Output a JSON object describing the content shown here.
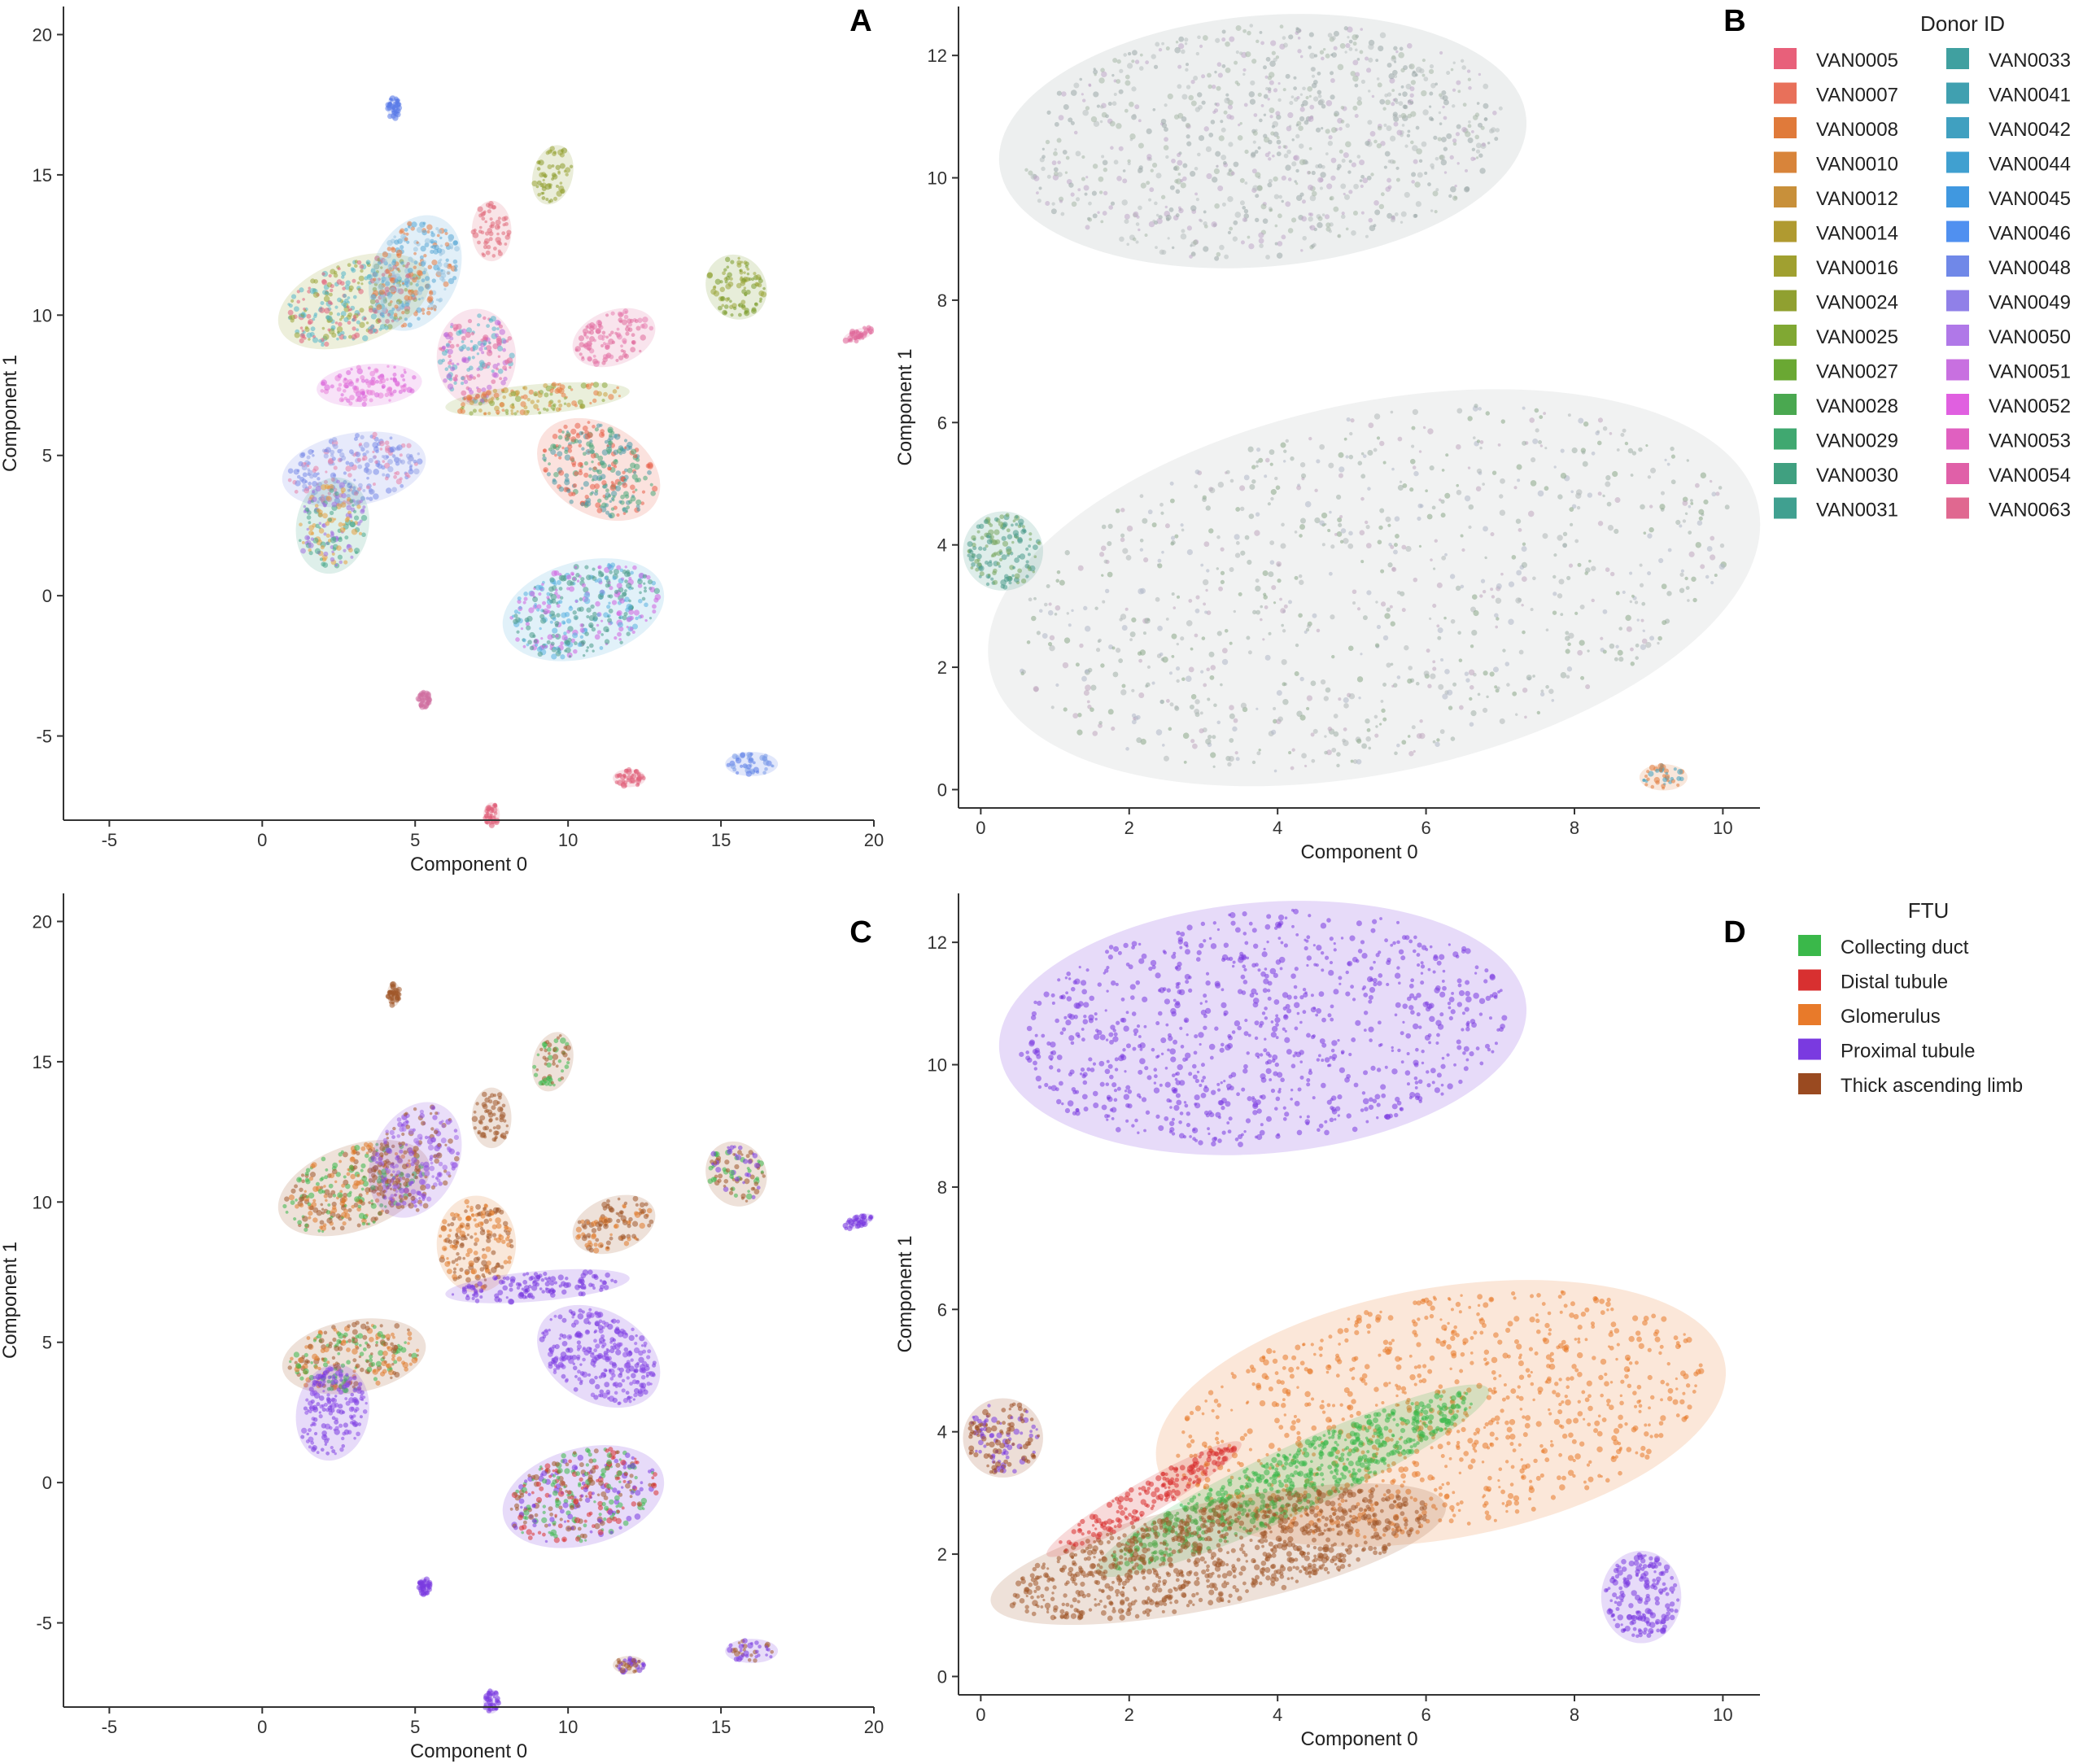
{
  "chart_data": [
    {
      "panel": "A",
      "type": "scatter",
      "xlabel": "Component 0",
      "ylabel": "Component 1",
      "xlim": [
        -6.5,
        20
      ],
      "ylim": [
        -8,
        21
      ],
      "xticks": [
        -5,
        0,
        5,
        10,
        15,
        20
      ],
      "yticks": [
        -5,
        0,
        5,
        10,
        15,
        20
      ],
      "color_by": "donor",
      "clusters": [
        {
          "x": 3,
          "y": 10.5,
          "rx": 2.4,
          "ry": 1.4,
          "rot": -20,
          "colors": [
            "#9aa63a",
            "#e0607a",
            "#55b6c8"
          ]
        },
        {
          "x": 5,
          "y": 11.5,
          "rx": 1.3,
          "ry": 2.0,
          "rot": 25,
          "colors": [
            "#5aa7d6",
            "#9ac4e0",
            "#e87a40"
          ]
        },
        {
          "x": 7,
          "y": 8.5,
          "rx": 1.2,
          "ry": 1.6,
          "rot": 0,
          "colors": [
            "#e06a9a",
            "#c06cd8",
            "#55b6c8"
          ]
        },
        {
          "x": 3.5,
          "y": 7.5,
          "rx": 1.6,
          "ry": 0.7,
          "rot": -5,
          "colors": [
            "#d860d8",
            "#e880d8"
          ]
        },
        {
          "x": 9,
          "y": 7,
          "rx": 2.8,
          "ry": 0.5,
          "rot": -5,
          "colors": [
            "#8aa63a",
            "#c8a040",
            "#e87a40"
          ]
        },
        {
          "x": 11,
          "y": 4.5,
          "rx": 2.0,
          "ry": 1.5,
          "rot": 30,
          "colors": [
            "#e8604a",
            "#4aa87a",
            "#4a9aa8"
          ]
        },
        {
          "x": 3,
          "y": 4.5,
          "rx": 2.2,
          "ry": 1.2,
          "rot": -10,
          "colors": [
            "#7a8ae8",
            "#e880a8",
            "#9aa6e8"
          ]
        },
        {
          "x": 2.3,
          "y": 2.5,
          "rx": 1.1,
          "ry": 1.6,
          "rot": 10,
          "colors": [
            "#4aa88a",
            "#a070e0",
            "#e8a040"
          ]
        },
        {
          "x": 10.5,
          "y": -0.5,
          "rx": 2.5,
          "ry": 1.6,
          "rot": -15,
          "colors": [
            "#5ab0e0",
            "#4a9a8a",
            "#d060e0"
          ]
        },
        {
          "x": 11.5,
          "y": 9.2,
          "rx": 1.3,
          "ry": 0.9,
          "rot": -20,
          "colors": [
            "#e06a9a",
            "#e880b0"
          ]
        },
        {
          "x": 9.5,
          "y": 15,
          "rx": 0.6,
          "ry": 1.0,
          "rot": 15,
          "colors": [
            "#8a9a2a",
            "#9aa63a"
          ]
        },
        {
          "x": 15.5,
          "y": 11,
          "rx": 0.9,
          "ry": 1.1,
          "rot": -30,
          "colors": [
            "#7a9a2a",
            "#9aa63a"
          ]
        },
        {
          "x": 7.5,
          "y": 13,
          "rx": 0.6,
          "ry": 1.0,
          "rot": 0,
          "colors": [
            "#e06a7a"
          ]
        },
        {
          "x": 16,
          "y": -6,
          "rx": 0.8,
          "ry": 0.4,
          "rot": 0,
          "colors": [
            "#5a7ae8",
            "#7a9ae8"
          ]
        },
        {
          "x": 12,
          "y": -6.5,
          "rx": 0.5,
          "ry": 0.3,
          "rot": 0,
          "colors": [
            "#e0607a"
          ]
        },
        {
          "x": 7.5,
          "y": -7.8,
          "rx": 0.25,
          "ry": 0.4,
          "rot": 0,
          "colors": [
            "#e0607a"
          ]
        },
        {
          "x": 5.3,
          "y": -3.7,
          "rx": 0.2,
          "ry": 0.3,
          "rot": 0,
          "colors": [
            "#d070a0"
          ]
        },
        {
          "x": 4.3,
          "y": 17.4,
          "rx": 0.2,
          "ry": 0.4,
          "rot": 0,
          "colors": [
            "#5a7ae8"
          ]
        },
        {
          "x": 19.5,
          "y": 9.3,
          "rx": 0.5,
          "ry": 0.2,
          "rot": -20,
          "colors": [
            "#e06a9a"
          ]
        }
      ]
    },
    {
      "panel": "B",
      "type": "scatter",
      "xlabel": "Component 0",
      "ylabel": "Component 1",
      "xlim": [
        -0.3,
        10.5
      ],
      "ylim": [
        -0.3,
        12.8
      ],
      "xticks": [
        0,
        2,
        4,
        6,
        8,
        10
      ],
      "yticks": [
        0,
        2,
        4,
        6,
        8,
        10,
        12
      ],
      "color_by": "donor",
      "legend": {
        "title": "Donor ID",
        "placement": "right",
        "entries": [
          {
            "label": "VAN0005",
            "color": "#e8607a"
          },
          {
            "label": "VAN0007",
            "color": "#e8705a"
          },
          {
            "label": "VAN0008",
            "color": "#e07a3a"
          },
          {
            "label": "VAN0010",
            "color": "#d8843a"
          },
          {
            "label": "VAN0012",
            "color": "#c8903a"
          },
          {
            "label": "VAN0014",
            "color": "#b09a30"
          },
          {
            "label": "VAN0016",
            "color": "#a0a030"
          },
          {
            "label": "VAN0024",
            "color": "#90a030"
          },
          {
            "label": "VAN0025",
            "color": "#80a833"
          },
          {
            "label": "VAN0027",
            "color": "#6aa833"
          },
          {
            "label": "VAN0028",
            "color": "#4aa850"
          },
          {
            "label": "VAN0029",
            "color": "#40a870"
          },
          {
            "label": "VAN0030",
            "color": "#40a080"
          },
          {
            "label": "VAN0031",
            "color": "#40a090"
          },
          {
            "label": "VAN0033",
            "color": "#40a0a0"
          },
          {
            "label": "VAN0041",
            "color": "#40a0b0"
          },
          {
            "label": "VAN0042",
            "color": "#40a0c0"
          },
          {
            "label": "VAN0044",
            "color": "#40a0d0"
          },
          {
            "label": "VAN0045",
            "color": "#4098e0"
          },
          {
            "label": "VAN0046",
            "color": "#5090f0"
          },
          {
            "label": "VAN0048",
            "color": "#7088e8"
          },
          {
            "label": "VAN0049",
            "color": "#9080e8"
          },
          {
            "label": "VAN0050",
            "color": "#b078e8"
          },
          {
            "label": "VAN0051",
            "color": "#c870e0"
          },
          {
            "label": "VAN0052",
            "color": "#e060e0"
          },
          {
            "label": "VAN0053",
            "color": "#e060c0"
          },
          {
            "label": "VAN0054",
            "color": "#e060a8"
          },
          {
            "label": "VAN0063",
            "color": "#e06890"
          }
        ]
      },
      "clusters": [
        {
          "x": 3.8,
          "y": 10.6,
          "rx": 3.3,
          "ry": 1.9,
          "rot": -5,
          "colors": [
            "#9aa8a8",
            "#b8c0c0",
            "#c0a8c8",
            "#a8b8a8"
          ]
        },
        {
          "x": 5.3,
          "y": 3.3,
          "rx": 4.9,
          "ry": 2.8,
          "rot": -12,
          "colors": [
            "#b0b8b8",
            "#a0b0a8",
            "#c0a8c0",
            "#8aa888",
            "#b0b8c8"
          ]
        },
        {
          "x": 0.3,
          "y": 3.9,
          "rx": 0.5,
          "ry": 0.6,
          "rot": 0,
          "colors": [
            "#4a9a8a",
            "#7aa860"
          ]
        },
        {
          "x": 9.2,
          "y": 0.2,
          "rx": 0.3,
          "ry": 0.2,
          "rot": 0,
          "colors": [
            "#e07a3a",
            "#40a0c0"
          ]
        }
      ]
    },
    {
      "panel": "C",
      "type": "scatter",
      "xlabel": "Component 0",
      "ylabel": "Component 1",
      "xlim": [
        -6.5,
        20
      ],
      "ylim": [
        -8,
        21
      ],
      "xticks": [
        -5,
        0,
        5,
        10,
        15,
        20
      ],
      "yticks": [
        -5,
        0,
        5,
        10,
        15,
        20
      ],
      "color_by": "FTU",
      "clusters": [
        {
          "x": 3,
          "y": 10.5,
          "rx": 2.4,
          "ry": 1.4,
          "rot": -20,
          "colors": [
            "#a0582a",
            "#3ab84a",
            "#e07a2a"
          ]
        },
        {
          "x": 5,
          "y": 11.5,
          "rx": 1.3,
          "ry": 2.0,
          "rot": 25,
          "colors": [
            "#8a4ae0",
            "#a06ae8",
            "#a0582a"
          ]
        },
        {
          "x": 7,
          "y": 8.5,
          "rx": 1.2,
          "ry": 1.6,
          "rot": 0,
          "colors": [
            "#e07a2a",
            "#a0582a"
          ]
        },
        {
          "x": 9,
          "y": 7,
          "rx": 2.8,
          "ry": 0.5,
          "rot": -5,
          "colors": [
            "#7a3ae0"
          ]
        },
        {
          "x": 11,
          "y": 4.5,
          "rx": 2.0,
          "ry": 1.5,
          "rot": 30,
          "colors": [
            "#7a3ae0",
            "#8a4ae8"
          ]
        },
        {
          "x": 3,
          "y": 4.5,
          "rx": 2.2,
          "ry": 1.2,
          "rot": -10,
          "colors": [
            "#a0582a",
            "#3ab84a",
            "#e07a2a"
          ]
        },
        {
          "x": 2.3,
          "y": 2.5,
          "rx": 1.1,
          "ry": 1.6,
          "rot": 10,
          "colors": [
            "#7a3ae0",
            "#8a4ae8"
          ]
        },
        {
          "x": 10.5,
          "y": -0.5,
          "rx": 2.5,
          "ry": 1.6,
          "rot": -15,
          "colors": [
            "#7a3ae0",
            "#a0582a",
            "#3ab84a",
            "#d83030"
          ]
        },
        {
          "x": 11.5,
          "y": 9.2,
          "rx": 1.3,
          "ry": 0.9,
          "rot": -20,
          "colors": [
            "#a0582a",
            "#e07a2a"
          ]
        },
        {
          "x": 9.5,
          "y": 15,
          "rx": 0.6,
          "ry": 1.0,
          "rot": 15,
          "colors": [
            "#a0582a",
            "#3ab84a"
          ]
        },
        {
          "x": 15.5,
          "y": 11,
          "rx": 0.9,
          "ry": 1.1,
          "rot": -30,
          "colors": [
            "#a0582a",
            "#7a3ae0",
            "#3ab84a"
          ]
        },
        {
          "x": 7.5,
          "y": 13,
          "rx": 0.6,
          "ry": 1.0,
          "rot": 0,
          "colors": [
            "#a0582a"
          ]
        },
        {
          "x": 16,
          "y": -6,
          "rx": 0.8,
          "ry": 0.4,
          "rot": 0,
          "colors": [
            "#7a3ae0",
            "#a0582a"
          ]
        },
        {
          "x": 12,
          "y": -6.5,
          "rx": 0.5,
          "ry": 0.3,
          "rot": 0,
          "colors": [
            "#a0582a",
            "#7a3ae0"
          ]
        },
        {
          "x": 7.5,
          "y": -7.8,
          "rx": 0.25,
          "ry": 0.4,
          "rot": 0,
          "colors": [
            "#7a3ae0"
          ]
        },
        {
          "x": 5.3,
          "y": -3.7,
          "rx": 0.2,
          "ry": 0.3,
          "rot": 0,
          "colors": [
            "#7a3ae0"
          ]
        },
        {
          "x": 4.3,
          "y": 17.4,
          "rx": 0.2,
          "ry": 0.4,
          "rot": 0,
          "colors": [
            "#a0582a"
          ]
        },
        {
          "x": 19.5,
          "y": 9.3,
          "rx": 0.5,
          "ry": 0.2,
          "rot": -20,
          "colors": [
            "#7a3ae0"
          ]
        }
      ]
    },
    {
      "panel": "D",
      "type": "scatter",
      "xlabel": "Component 0",
      "ylabel": "Component 1",
      "xlim": [
        -0.3,
        10.5
      ],
      "ylim": [
        -0.3,
        12.8
      ],
      "xticks": [
        0,
        2,
        4,
        6,
        8,
        10
      ],
      "yticks": [
        0,
        2,
        4,
        6,
        8,
        10,
        12
      ],
      "color_by": "FTU",
      "legend": {
        "title": "FTU",
        "placement": "right",
        "entries": [
          {
            "label": "Collecting duct",
            "color": "#3ab84a"
          },
          {
            "label": "Distal tubule",
            "color": "#d83030"
          },
          {
            "label": "Glomerulus",
            "color": "#e87a2a"
          },
          {
            "label": "Proximal tubule",
            "color": "#7a3ae0"
          },
          {
            "label": "Thick ascending limb",
            "color": "#9a4a20"
          }
        ]
      },
      "clusters": [
        {
          "x": 3.8,
          "y": 10.6,
          "rx": 3.3,
          "ry": 1.9,
          "rot": -5,
          "colors": [
            "#7a3ae0"
          ]
        },
        {
          "x": 6.2,
          "y": 4.3,
          "rx": 3.6,
          "ry": 1.9,
          "rot": -10,
          "colors": [
            "#e87a2a"
          ]
        },
        {
          "x": 4.2,
          "y": 3.2,
          "rx": 2.7,
          "ry": 0.5,
          "rot": -25,
          "colors": [
            "#3ab84a"
          ]
        },
        {
          "x": 3.2,
          "y": 2.0,
          "rx": 2.9,
          "ry": 0.8,
          "rot": -12,
          "colors": [
            "#a0582a"
          ]
        },
        {
          "x": 2.2,
          "y": 2.9,
          "rx": 1.4,
          "ry": 0.25,
          "rot": -30,
          "colors": [
            "#d83030"
          ]
        },
        {
          "x": 8.9,
          "y": 1.3,
          "rx": 0.5,
          "ry": 0.7,
          "rot": 0,
          "colors": [
            "#7a3ae0"
          ]
        },
        {
          "x": 0.3,
          "y": 3.9,
          "rx": 0.5,
          "ry": 0.6,
          "rot": 0,
          "colors": [
            "#9a4a20",
            "#7a3ae0"
          ]
        }
      ]
    }
  ]
}
